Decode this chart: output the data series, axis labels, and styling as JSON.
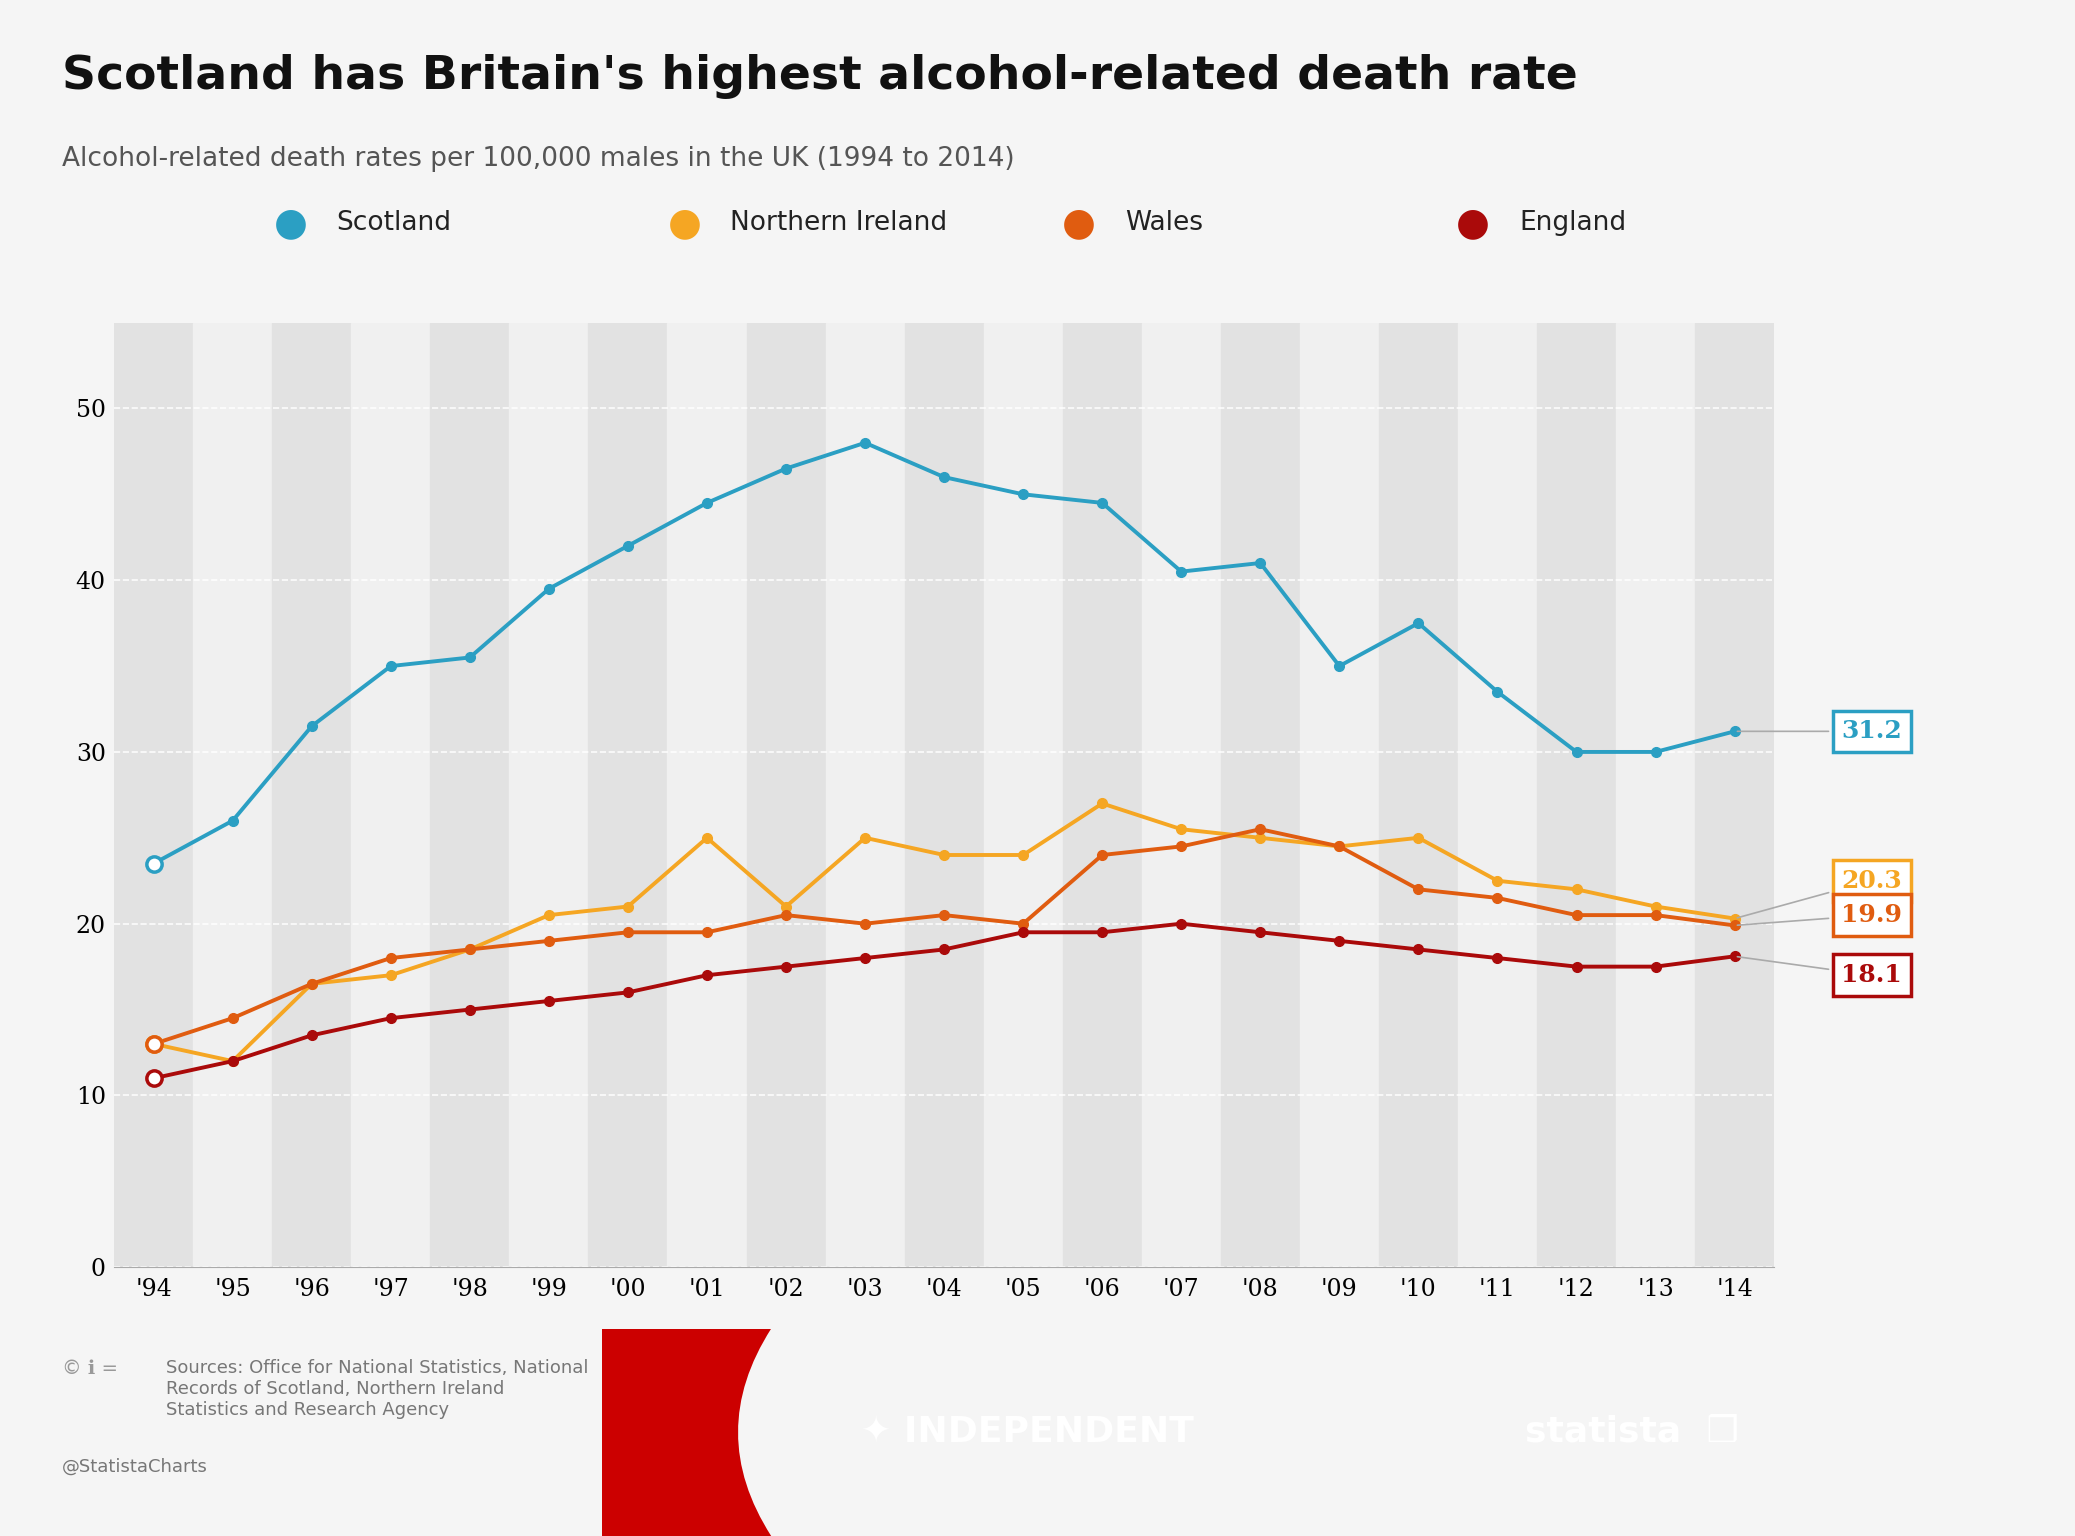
{
  "title": "Scotland has Britain's highest alcohol-related death rate",
  "subtitle": "Alcohol-related death rates per 100,000 males in the UK (1994 to 2014)",
  "years": [
    "'94",
    "'95",
    "'96",
    "'97",
    "'98",
    "'99",
    "'00",
    "'01",
    "'02",
    "'03",
    "'04",
    "'05",
    "'06",
    "'07",
    "'08",
    "'09",
    "'10",
    "'11",
    "'12",
    "'13",
    "'14"
  ],
  "scotland": [
    23.5,
    26.0,
    31.5,
    35.0,
    35.5,
    39.5,
    42.0,
    44.5,
    46.5,
    48.0,
    46.0,
    45.0,
    44.5,
    40.5,
    41.0,
    35.0,
    37.5,
    33.5,
    30.0,
    30.0,
    31.2
  ],
  "northern_ireland": [
    13.0,
    12.0,
    16.5,
    17.0,
    18.5,
    20.5,
    21.0,
    25.0,
    21.0,
    25.0,
    24.0,
    24.0,
    27.0,
    25.5,
    25.0,
    24.5,
    25.0,
    22.5,
    22.0,
    21.0,
    20.3
  ],
  "wales": [
    13.0,
    14.5,
    16.5,
    18.0,
    18.5,
    19.0,
    19.5,
    19.5,
    20.5,
    20.0,
    20.5,
    20.0,
    24.0,
    24.5,
    25.5,
    24.5,
    22.0,
    21.5,
    20.5,
    20.5,
    19.9
  ],
  "england": [
    11.0,
    12.0,
    13.5,
    14.5,
    15.0,
    15.5,
    16.0,
    17.0,
    17.5,
    18.0,
    18.5,
    19.5,
    19.5,
    20.0,
    19.5,
    19.0,
    18.5,
    18.0,
    17.5,
    17.5,
    18.1
  ],
  "scotland_color": "#2b9fc3",
  "northern_ireland_color": "#f5a623",
  "wales_color": "#e05c10",
  "england_color": "#aa0a0a",
  "bg_color": "#f5f5f5",
  "band_light": "#f0f0f0",
  "band_dark": "#e2e2e2",
  "ylim": [
    0,
    55
  ],
  "yticks": [
    0,
    10,
    20,
    30,
    40,
    50
  ],
  "footer_bg": "#111111",
  "source_text": "Sources: Office for National Statistics, National\nRecords of Scotland, Northern Ireland\nStatistics and Research Agency",
  "credit_text": "@StatistaCharts"
}
